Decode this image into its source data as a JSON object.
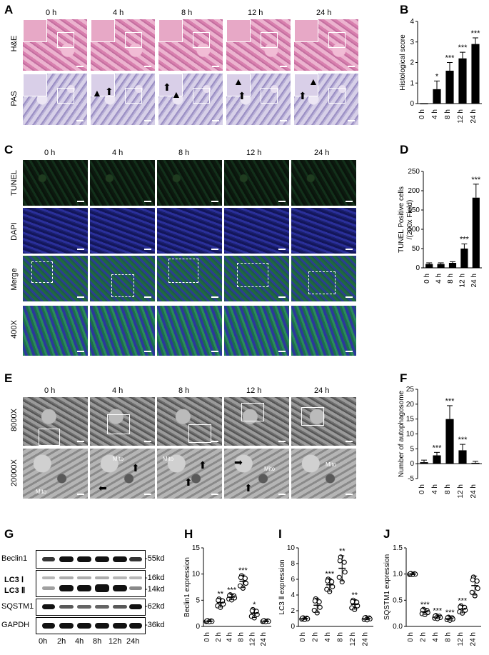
{
  "panel_letters": [
    "A",
    "B",
    "C",
    "D",
    "E",
    "F",
    "G",
    "H",
    "I",
    "J"
  ],
  "timepoints_A": [
    "0 h",
    "4 h",
    "8 h",
    "12 h",
    "24 h"
  ],
  "rows_A": [
    "H&E",
    "PAS"
  ],
  "rows_C": [
    "TUNEL",
    "DAPI",
    "Merge",
    "400X"
  ],
  "rows_E": [
    "8000X",
    "20000X"
  ],
  "mito_label": "Mito",
  "blot": {
    "proteins": [
      "Beclin1",
      "LC3 Ⅰ",
      "LC3 Ⅱ",
      "SQSTM1",
      "GAPDH"
    ],
    "sizes": [
      "-55kd",
      "-16kd",
      "-14kd",
      "-62kd",
      "-36kd"
    ],
    "lanes": [
      "0h",
      "2h",
      "4h",
      "8h",
      "12h",
      "24h"
    ]
  },
  "chart_data": [
    {
      "panel": "B",
      "type": "bar",
      "categories": [
        "0 h",
        "4 h",
        "8 h",
        "12 h",
        "24 h"
      ],
      "values": [
        0,
        0.7,
        1.6,
        2.2,
        2.9
      ],
      "errors": [
        0,
        0.4,
        0.4,
        0.3,
        0.3
      ],
      "sig": [
        "",
        "*",
        "***",
        "***",
        "***"
      ],
      "ylabel": "Histological score",
      "ylim": [
        0,
        4
      ],
      "yticks": [
        "0",
        "1",
        "2",
        "3",
        "4"
      ]
    },
    {
      "panel": "D",
      "type": "bar",
      "categories": [
        "0 h",
        "4 h",
        "8 h",
        "12 h",
        "24 h"
      ],
      "values": [
        10,
        10,
        13,
        50,
        182
      ],
      "errors": [
        3,
        3,
        3,
        12,
        35
      ],
      "sig": [
        "",
        "",
        "",
        "***",
        "***"
      ],
      "ylabel": "TUNEL Positive cells /(200x Field)",
      "ylim": [
        0,
        250
      ],
      "yticks": [
        "0",
        "50",
        "100",
        "150",
        "200",
        "250"
      ]
    },
    {
      "panel": "F",
      "type": "bar",
      "categories": [
        "0 h",
        "4 h",
        "8 h",
        "12 h",
        "24 h"
      ],
      "values": [
        0.5,
        2.8,
        15,
        4.5,
        0.3
      ],
      "errors": [
        0.7,
        1,
        4.5,
        2,
        0.5
      ],
      "sig": [
        "",
        "***",
        "***",
        "***",
        ""
      ],
      "ylabel": "Number of autophagosome",
      "ylim": [
        -5,
        25
      ],
      "yticks": [
        "-5",
        "0",
        "5",
        "10",
        "15",
        "20",
        "25"
      ]
    },
    {
      "panel": "H",
      "type": "scatter",
      "categories": [
        "0 h",
        "2 h",
        "4 h",
        "8 h",
        "12 h",
        "24 h"
      ],
      "means": [
        1.0,
        4.5,
        5.6,
        8.6,
        2.5,
        1.0
      ],
      "sds": [
        0.1,
        0.8,
        0.5,
        1.2,
        0.8,
        0.1
      ],
      "sig": [
        "",
        "**",
        "***",
        "***",
        "*",
        ""
      ],
      "ylabel": "Beclin1 expression",
      "ylim": [
        0,
        15
      ],
      "yticks": [
        "0",
        "5",
        "10",
        "15"
      ]
    },
    {
      "panel": "I",
      "type": "scatter",
      "categories": [
        "0 h",
        "2 h",
        "4 h",
        "8 h",
        "12 h",
        "24 h"
      ],
      "means": [
        1.0,
        2.7,
        5.3,
        7.4,
        2.8,
        1.0
      ],
      "sds": [
        0.1,
        0.9,
        0.8,
        1.6,
        0.6,
        0.15
      ],
      "sig": [
        "",
        "",
        "***",
        "**",
        "**",
        ""
      ],
      "ylabel": "LC3 Ⅱ expression",
      "ylim": [
        0,
        10
      ],
      "yticks": [
        "0",
        "2",
        "4",
        "6",
        "8",
        "10"
      ]
    },
    {
      "panel": "J",
      "type": "scatter",
      "categories": [
        "0 h",
        "2 h",
        "4 h",
        "8 h",
        "12 h",
        "24 h"
      ],
      "means": [
        1.0,
        0.28,
        0.18,
        0.15,
        0.33,
        0.78
      ],
      "sds": [
        0.01,
        0.05,
        0.03,
        0.03,
        0.07,
        0.18
      ],
      "sig": [
        "",
        "***",
        "***",
        "***",
        "***",
        ""
      ],
      "ylabel": "SQSTM1 expression",
      "ylim": [
        0,
        1.5
      ],
      "yticks": [
        "0.0",
        "0.5",
        "1.0",
        "1.5"
      ]
    }
  ]
}
